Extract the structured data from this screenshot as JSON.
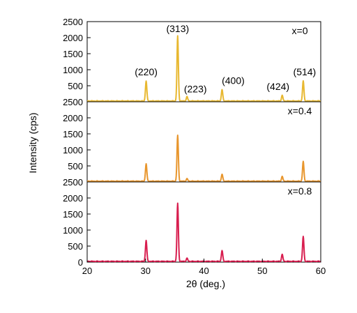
{
  "chart_data": {
    "type": "line",
    "xlabel": "2θ (deg.)",
    "ylabel": "Intensity (cps)",
    "xlim": [
      20,
      60
    ],
    "x_ticks": [
      "20",
      "30",
      "40",
      "50",
      "60"
    ],
    "y_ticks": [
      "0",
      "500",
      "1000",
      "1500",
      "2000",
      "2500"
    ],
    "grid": false,
    "stacked_panels": true,
    "panels": [
      {
        "label": "x=0",
        "color": "#e8b830",
        "ylim": [
          0,
          2500
        ],
        "peaks": [
          {
            "x": 30.1,
            "y": 650
          },
          {
            "x": 35.5,
            "y": 2050
          },
          {
            "x": 37.1,
            "y": 160
          },
          {
            "x": 43.1,
            "y": 380
          },
          {
            "x": 53.4,
            "y": 200
          },
          {
            "x": 57.0,
            "y": 650
          }
        ],
        "annotations": [
          {
            "text": "(220)",
            "x": 30.1
          },
          {
            "text": "(313)",
            "x": 35.5
          },
          {
            "text": "(223)",
            "x": 37.1
          },
          {
            "text": "(400)",
            "x": 43.1
          },
          {
            "text": "(424)",
            "x": 53.4
          },
          {
            "text": "(514)",
            "x": 57.0
          }
        ]
      },
      {
        "label": "x=0.4",
        "color": "#e8962d",
        "ylim": [
          0,
          2500
        ],
        "peaks": [
          {
            "x": 30.1,
            "y": 570
          },
          {
            "x": 35.5,
            "y": 1450
          },
          {
            "x": 37.1,
            "y": 100
          },
          {
            "x": 43.1,
            "y": 240
          },
          {
            "x": 53.4,
            "y": 170
          },
          {
            "x": 57.0,
            "y": 640
          }
        ]
      },
      {
        "label": "x=0.8",
        "color": "#d81e4f",
        "ylim": [
          0,
          2500
        ],
        "peaks": [
          {
            "x": 30.1,
            "y": 680
          },
          {
            "x": 35.5,
            "y": 1830
          },
          {
            "x": 37.1,
            "y": 120
          },
          {
            "x": 43.1,
            "y": 360
          },
          {
            "x": 53.4,
            "y": 240
          },
          {
            "x": 57.0,
            "y": 800
          }
        ]
      }
    ]
  }
}
